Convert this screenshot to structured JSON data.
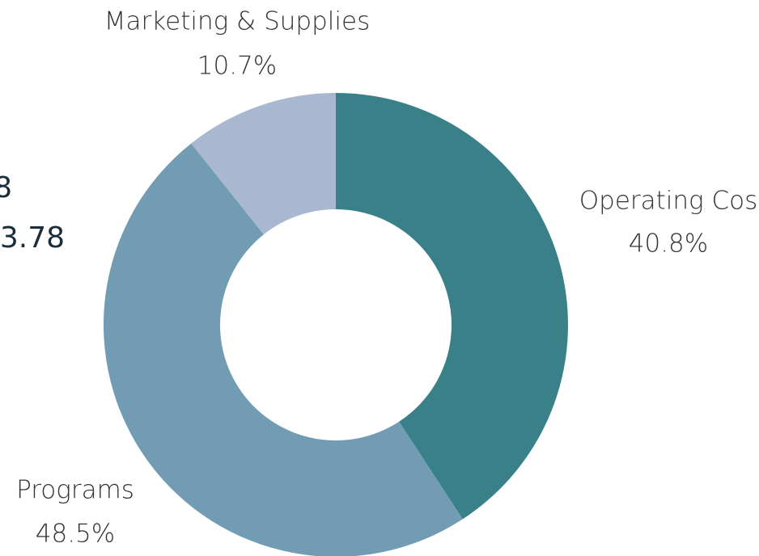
{
  "chart_data": {
    "type": "donut",
    "categories": [
      "Operating Cos",
      "Programs",
      "Marketing & Supplies"
    ],
    "values": [
      40.8,
      48.5,
      10.7
    ],
    "value_labels": [
      "40.8%",
      "48.5%",
      "10.7%"
    ],
    "colors": [
      "#3a8089",
      "#729cb3",
      "#a9b8d1"
    ],
    "side_text": [
      "8",
      "3.78"
    ]
  }
}
